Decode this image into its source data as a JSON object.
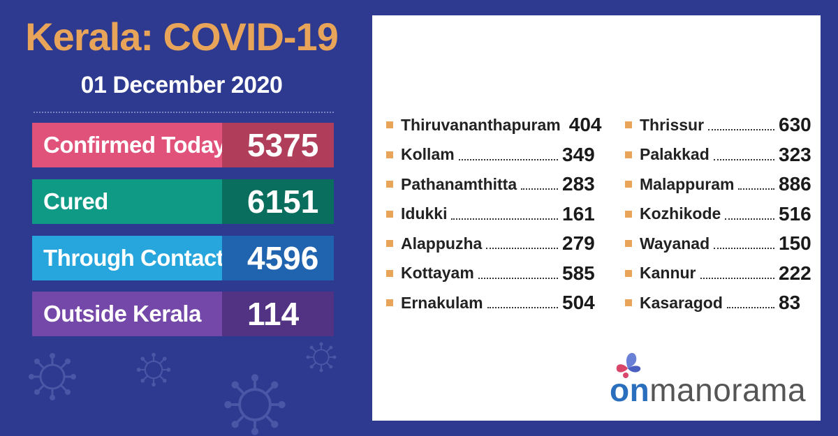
{
  "header": {
    "title": "Kerala: COVID-19",
    "date": "01 December 2020"
  },
  "stats": [
    {
      "label": "Confirmed Today",
      "value": "5375",
      "label_color": "#e0527a",
      "value_color": "#b03d5a"
    },
    {
      "label": "Cured",
      "value": "6151",
      "label_color": "#0f9a86",
      "value_color": "#0a6e5f"
    },
    {
      "label": "Through Contact",
      "value": "4596",
      "label_color": "#27a6dd",
      "value_color": "#2064b0"
    },
    {
      "label": "Outside Kerala",
      "value": "114",
      "label_color": "#7348a8",
      "value_color": "#523383"
    }
  ],
  "districts_left": [
    {
      "name": "Thiruvananthapuram",
      "count": "404"
    },
    {
      "name": "Kollam",
      "count": "349"
    },
    {
      "name": "Pathanamthitta",
      "count": "283"
    },
    {
      "name": "Idukki",
      "count": "161"
    },
    {
      "name": "Alappuzha",
      "count": "279"
    },
    {
      "name": "Kottayam",
      "count": "585"
    },
    {
      "name": "Ernakulam",
      "count": "504"
    }
  ],
  "districts_right": [
    {
      "name": "Thrissur",
      "count": "630"
    },
    {
      "name": "Palakkad",
      "count": "323"
    },
    {
      "name": "Malappuram",
      "count": "886"
    },
    {
      "name": "Kozhikode",
      "count": "516"
    },
    {
      "name": "Wayanad",
      "count": "150"
    },
    {
      "name": "Kannur",
      "count": "222"
    },
    {
      "name": "Kasaragod",
      "count": "83"
    }
  ],
  "logo": {
    "prefix": "on",
    "suffix": "manorama"
  },
  "colors": {
    "background": "#2e3a8f",
    "title": "#e8a55a",
    "bullet": "#e8a55a"
  }
}
